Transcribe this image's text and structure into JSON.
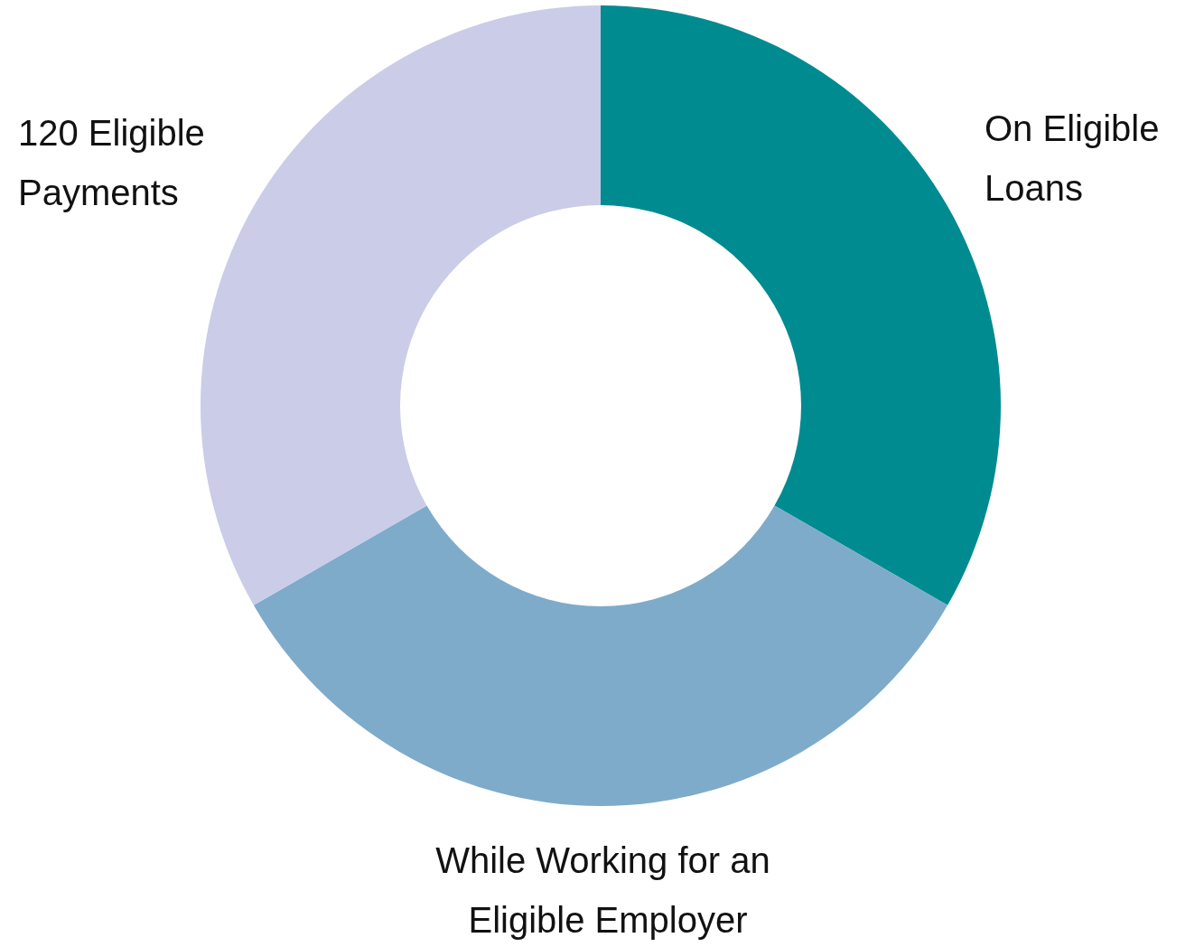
{
  "chart_data": {
    "type": "donut",
    "categories": [
      "On Eligible Loans",
      "While Working for an Eligible Employer",
      "120 Eligible Payments"
    ],
    "values": [
      33.3,
      33.4,
      33.3
    ],
    "colors": [
      "#008b91",
      "#7eabca",
      "#cacce8"
    ]
  }
}
